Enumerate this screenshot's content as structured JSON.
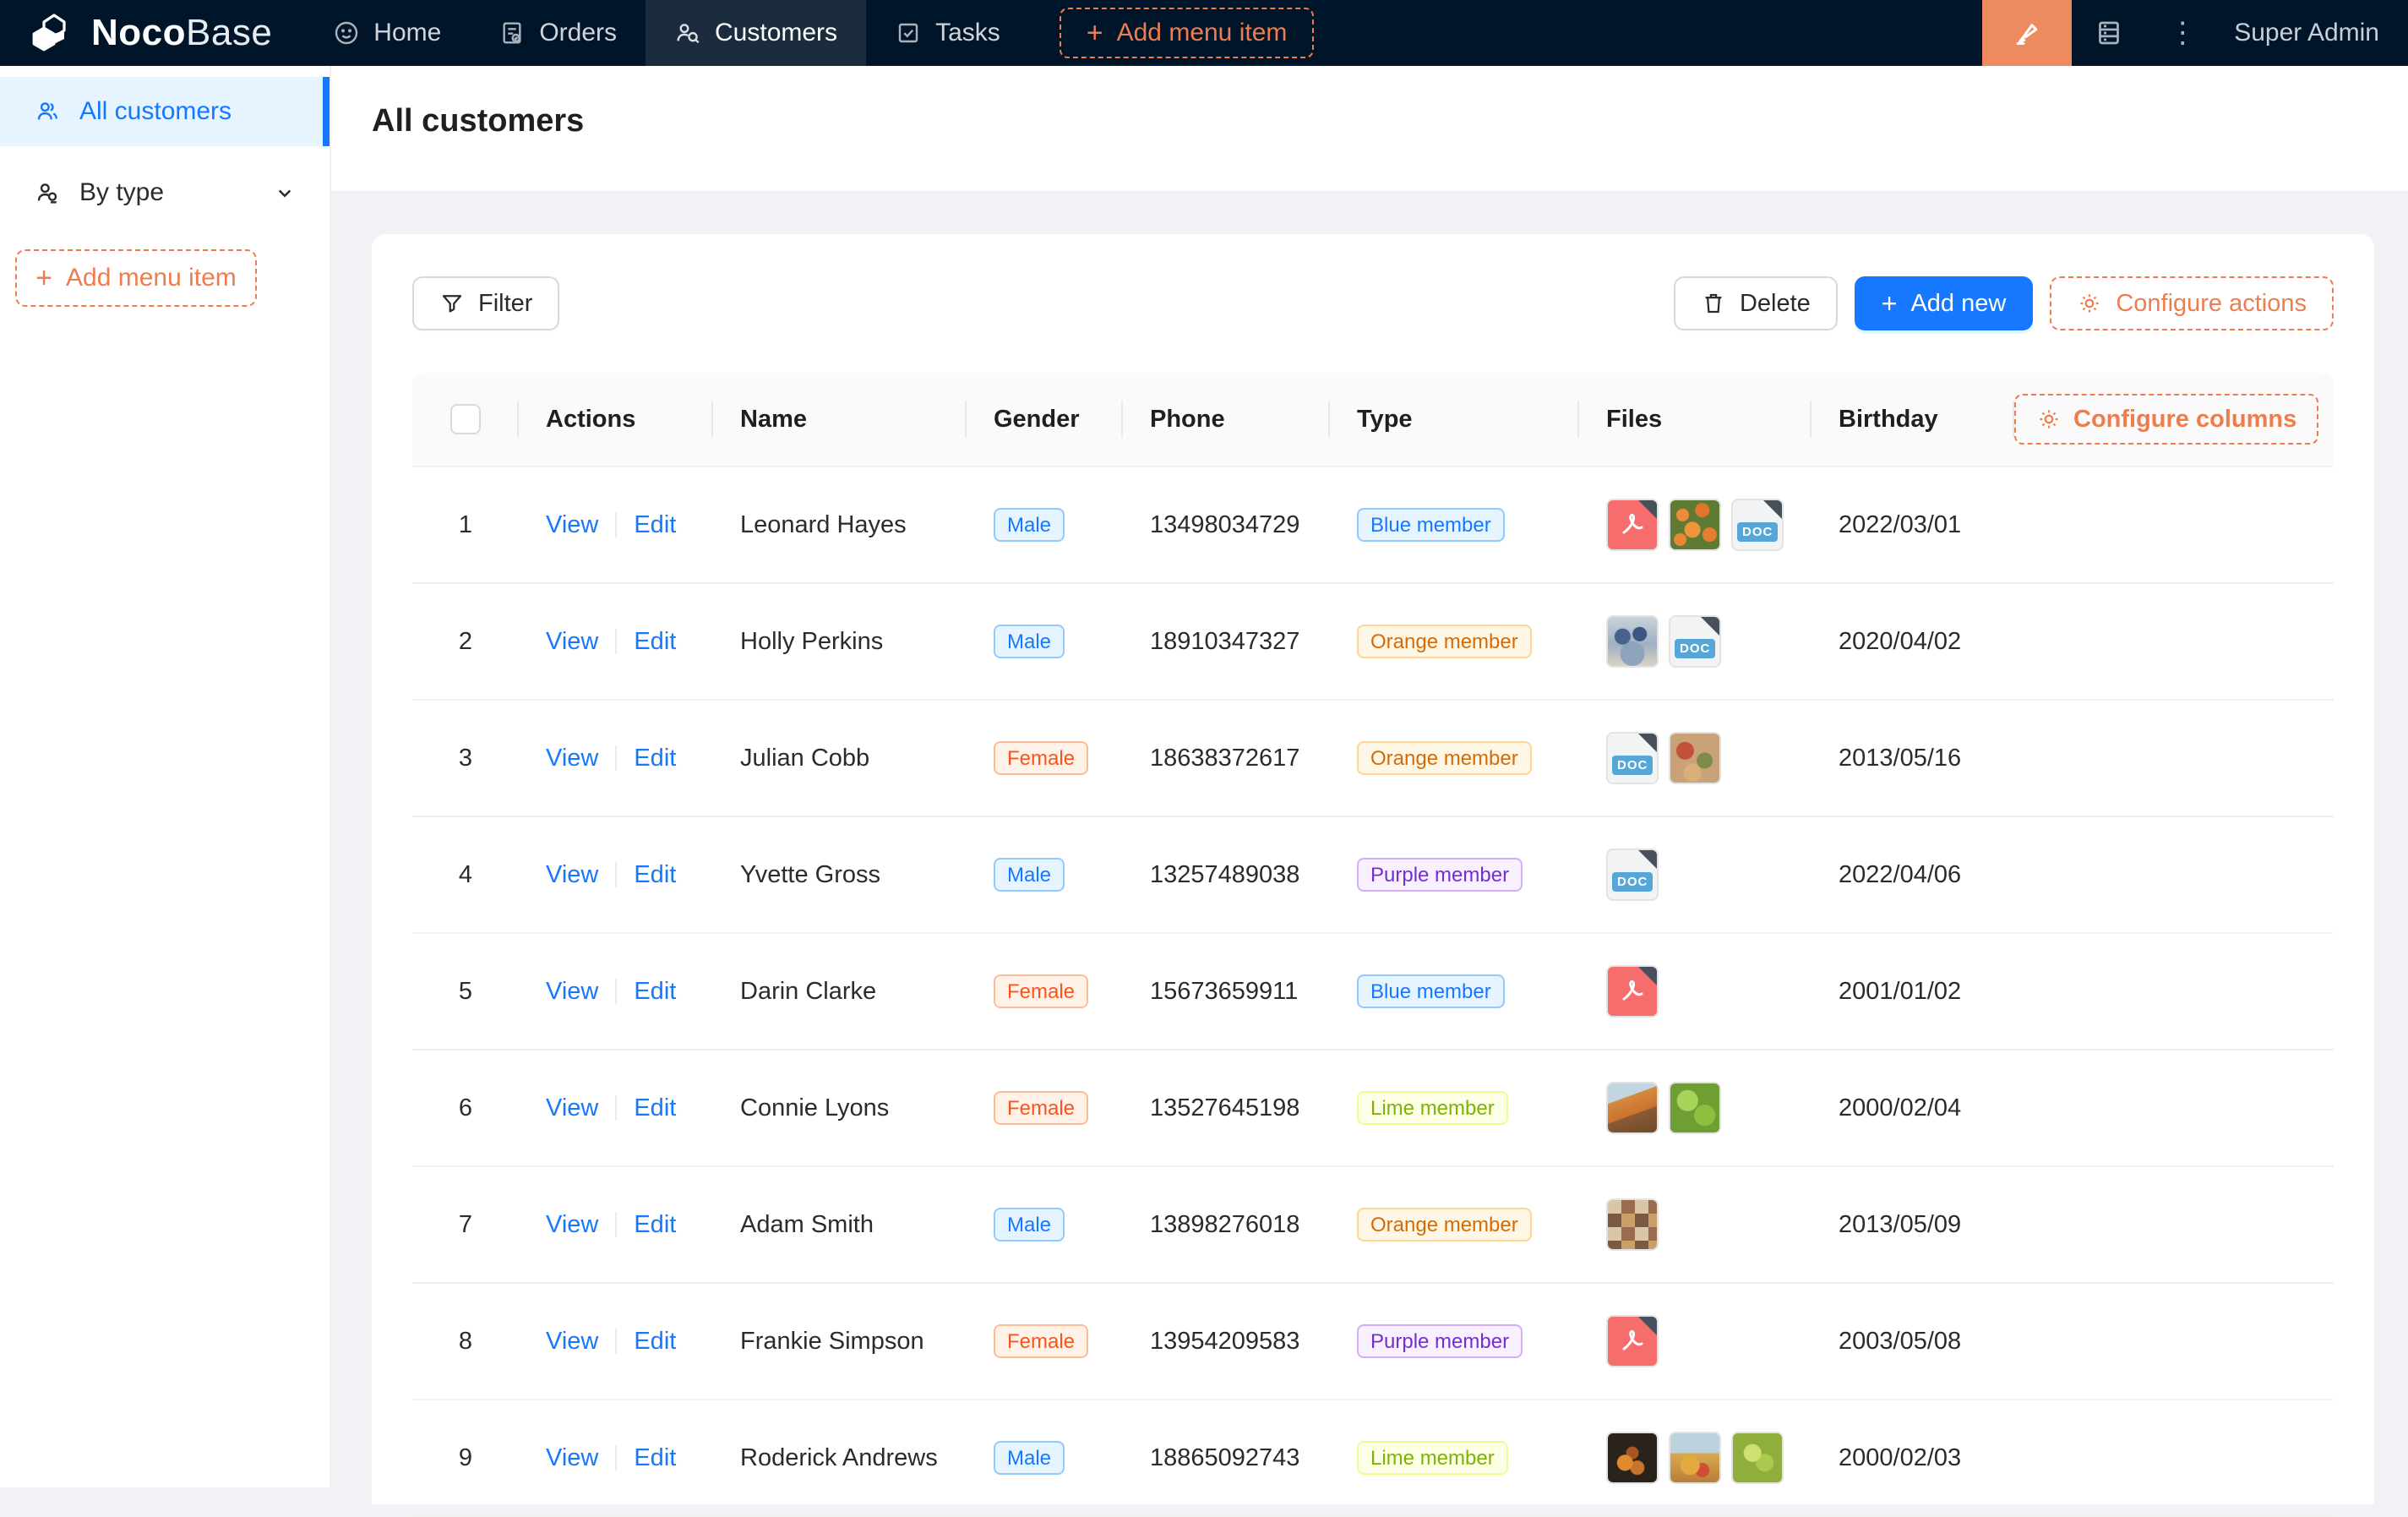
{
  "colors": {
    "navbar_bg": "#001529",
    "accent_orange": "#ed7d4e",
    "ui_editor_btn": "#ee8a5f",
    "primary_blue": "#1677ff",
    "selected_menu_bg": "#e6f4ff",
    "content_bg": "#f1f2f5",
    "tag_blue": {
      "bg": "#e6f4ff",
      "border": "#91caff",
      "text": "#1677ff"
    },
    "tag_volcano": {
      "bg": "#fff2e8",
      "border": "#ffbb96",
      "text": "#fa541c"
    },
    "tag_orange": {
      "bg": "#fff7e6",
      "border": "#ffd591",
      "text": "#d46b08"
    },
    "tag_purple": {
      "bg": "#f9f0ff",
      "border": "#d3adf7",
      "text": "#722ed1"
    },
    "tag_lime": {
      "bg": "#fcffe6",
      "border": "#eaff8f",
      "text": "#7cb305"
    }
  },
  "icons": {
    "plus_glyph": "+",
    "kebab_glyph": "⋮"
  },
  "navbar": {
    "logo_primary": "Noco",
    "logo_secondary": "Base",
    "items": [
      {
        "label": "Home"
      },
      {
        "label": "Orders"
      },
      {
        "label": "Customers",
        "active": true
      },
      {
        "label": "Tasks"
      }
    ],
    "add_menu_item": "Add menu item",
    "user": "Super Admin"
  },
  "sidebar": {
    "items": [
      {
        "label": "All customers",
        "active": true
      },
      {
        "label": "By type"
      }
    ],
    "add_menu_item": "Add menu item"
  },
  "page": {
    "title": "All customers"
  },
  "toolbar": {
    "filter": "Filter",
    "delete": "Delete",
    "add_new": "Add new",
    "configure_actions": "Configure actions"
  },
  "table": {
    "columns": [
      "Actions",
      "Name",
      "Gender",
      "Phone",
      "Type",
      "Files",
      "Birthday"
    ],
    "configure_columns": "Configure columns",
    "view_label": "View",
    "edit_label": "Edit",
    "rows": [
      {
        "index": "1",
        "name": "Leonard Hayes",
        "gender": "Male",
        "gender_color": "blue",
        "phone": "13498034729",
        "type": "Blue member",
        "type_color": "blue",
        "files": [
          {
            "kind": "pdf"
          },
          {
            "kind": "image",
            "thumb": "orange-flowers"
          },
          {
            "kind": "doc"
          }
        ],
        "birthday": "2022/03/01"
      },
      {
        "index": "2",
        "name": "Holly Perkins",
        "gender": "Male",
        "gender_color": "blue",
        "phone": "18910347327",
        "type": "Orange member",
        "type_color": "orange",
        "files": [
          {
            "kind": "image",
            "thumb": "blue-people"
          },
          {
            "kind": "doc"
          }
        ],
        "birthday": "2020/04/02"
      },
      {
        "index": "3",
        "name": "Julian Cobb",
        "gender": "Female",
        "gender_color": "volcano",
        "phone": "18638372617",
        "type": "Orange member",
        "type_color": "orange",
        "files": [
          {
            "kind": "doc"
          },
          {
            "kind": "image",
            "thumb": "warm-food"
          }
        ],
        "birthday": "2013/05/16"
      },
      {
        "index": "4",
        "name": "Yvette Gross",
        "gender": "Male",
        "gender_color": "blue",
        "phone": "13257489038",
        "type": "Purple member",
        "type_color": "purple",
        "files": [
          {
            "kind": "doc"
          }
        ],
        "birthday": "2022/04/06"
      },
      {
        "index": "5",
        "name": "Darin Clarke",
        "gender": "Female",
        "gender_color": "volcano",
        "phone": "15673659911",
        "type": "Blue member",
        "type_color": "blue",
        "files": [
          {
            "kind": "pdf"
          }
        ],
        "birthday": "2001/01/02"
      },
      {
        "index": "6",
        "name": "Connie Lyons",
        "gender": "Female",
        "gender_color": "volcano",
        "phone": "13527645198",
        "type": "Lime member",
        "type_color": "lime",
        "files": [
          {
            "kind": "image",
            "thumb": "autumn-mountain"
          },
          {
            "kind": "image",
            "thumb": "green-leaves"
          }
        ],
        "birthday": "2000/02/04"
      },
      {
        "index": "7",
        "name": "Adam Smith",
        "gender": "Male",
        "gender_color": "blue",
        "phone": "13898276018",
        "type": "Orange member",
        "type_color": "orange",
        "files": [
          {
            "kind": "image",
            "thumb": "food-collage"
          }
        ],
        "birthday": "2013/05/09"
      },
      {
        "index": "8",
        "name": "Frankie Simpson",
        "gender": "Female",
        "gender_color": "volcano",
        "phone": "13954209583",
        "type": "Purple member",
        "type_color": "purple",
        "files": [
          {
            "kind": "pdf"
          }
        ],
        "birthday": "2003/05/08"
      },
      {
        "index": "9",
        "name": "Roderick Andrews",
        "gender": "Male",
        "gender_color": "blue",
        "phone": "18865092743",
        "type": "Lime member",
        "type_color": "lime",
        "files": [
          {
            "kind": "image",
            "thumb": "dark-fruit"
          },
          {
            "kind": "image",
            "thumb": "fruit-sky"
          },
          {
            "kind": "image",
            "thumb": "green-grapes"
          }
        ],
        "birthday": "2000/02/03"
      }
    ]
  }
}
